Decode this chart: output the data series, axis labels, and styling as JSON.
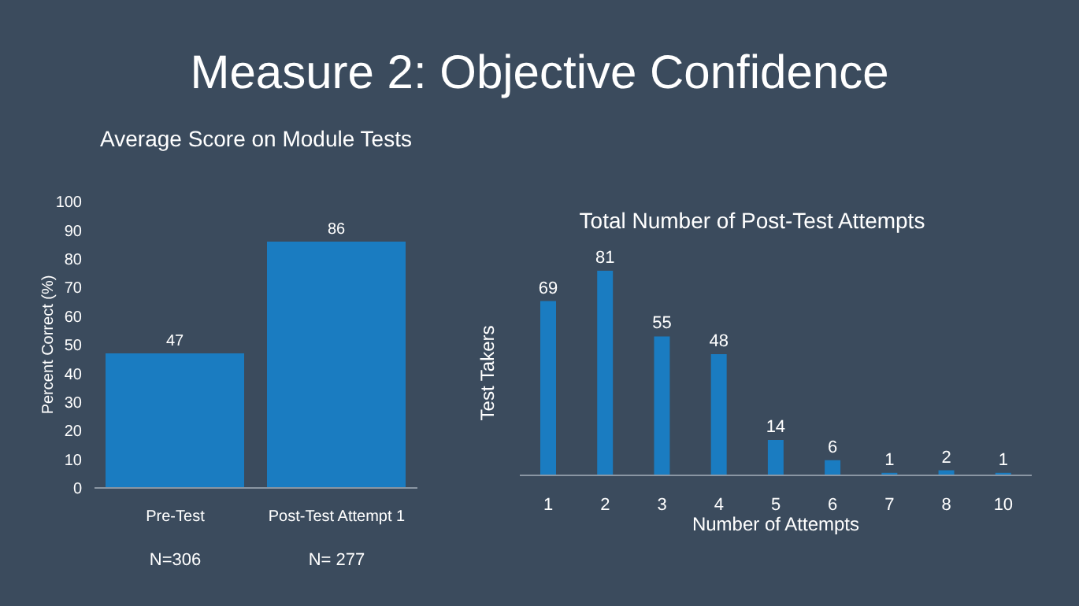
{
  "chart_data": [
    {
      "type": "bar",
      "title": "Average Score on Module Tests",
      "ylabel": "Percent Correct (%)",
      "categories": [
        "Pre-Test",
        "Post-Test Attempt 1"
      ],
      "values": [
        47,
        86
      ],
      "color": "#1a7cc1",
      "ylim": [
        0,
        100
      ],
      "yticks": [
        0,
        10,
        20,
        30,
        40,
        50,
        60,
        70,
        80,
        90,
        100
      ],
      "data_labels": true,
      "annotations": [
        "Measure 2: Objective Confidence",
        "N=306",
        "N= 277"
      ]
    },
    {
      "type": "bar",
      "title": "Total Number of Post-Test Attempts",
      "xlabel": "Number of Attempts",
      "ylabel": "Test Takers",
      "categories": [
        "1",
        "2",
        "3",
        "4",
        "5",
        "6",
        "7",
        "8",
        "10"
      ],
      "values": [
        69,
        81,
        55,
        48,
        14,
        6,
        1,
        2,
        1
      ],
      "color": "#1a7cc1",
      "data_labels": true
    }
  ]
}
